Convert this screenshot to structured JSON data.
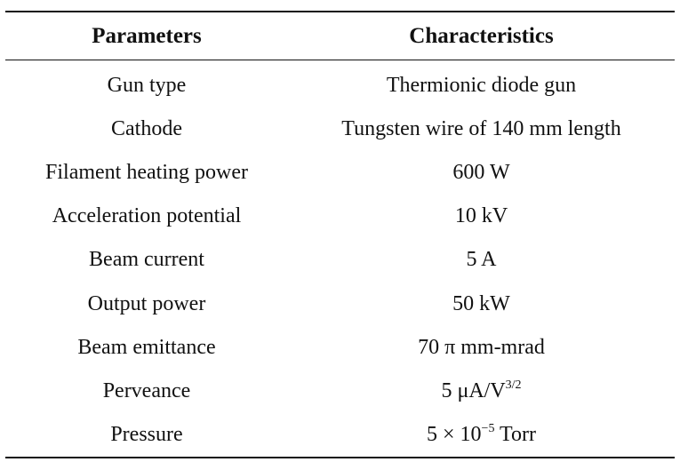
{
  "table": {
    "headers": {
      "parameters": "Parameters",
      "characteristics": "Characteristics"
    },
    "rows": [
      {
        "parameter": "Gun type",
        "characteristic": "Thermionic diode gun"
      },
      {
        "parameter": "Cathode",
        "characteristic": "Tungsten wire of 140 mm length"
      },
      {
        "parameter": "Filament heating power",
        "characteristic": "600 W"
      },
      {
        "parameter": "Acceleration potential",
        "characteristic": "10 kV"
      },
      {
        "parameter": "Beam current",
        "characteristic": "5 A"
      },
      {
        "parameter": "Output power",
        "characteristic": "50 kW"
      },
      {
        "parameter": "Beam emittance",
        "characteristic": "70 π mm-mrad"
      },
      {
        "parameter": "Perveance",
        "characteristic": "5 μA/V",
        "characteristic_sup": "3/2"
      },
      {
        "parameter": "Pressure",
        "characteristic": "5 × 10",
        "characteristic_sup": "−5",
        "characteristic_suffix": " Torr"
      }
    ]
  }
}
